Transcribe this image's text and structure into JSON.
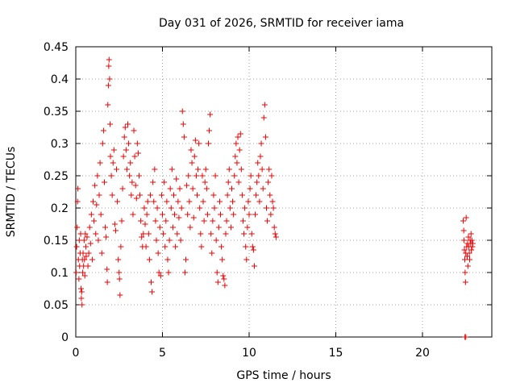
{
  "chart_data": {
    "type": "scatter",
    "title": "Day 031 of 2026, SRMTID for receiver iama",
    "xlabel": "GPS time / hours",
    "ylabel": "SRMTID / TECUs",
    "xlim": [
      0,
      24
    ],
    "ylim": [
      0,
      0.45
    ],
    "xticks": [
      "0",
      "5",
      "10",
      "15",
      "20"
    ],
    "yticks": [
      "0",
      "0.05",
      "0.1",
      "0.15",
      "0.2",
      "0.25",
      "0.3",
      "0.35",
      "0.4",
      "0.45"
    ],
    "grid": true,
    "marker": "+",
    "color": "#ee0000",
    "series": [
      {
        "name": "SRMTID",
        "points": [
          [
            0.02,
            0.1
          ],
          [
            0.05,
            0.14
          ],
          [
            0.08,
            0.17
          ],
          [
            0.1,
            0.21
          ],
          [
            0.12,
            0.23
          ],
          [
            0.15,
            0.12
          ],
          [
            0.18,
            0.09
          ],
          [
            0.2,
            0.15
          ],
          [
            0.22,
            0.11
          ],
          [
            0.25,
            0.13
          ],
          [
            0.28,
            0.16
          ],
          [
            0.3,
            0.075
          ],
          [
            0.32,
            0.06
          ],
          [
            0.34,
            0.07
          ],
          [
            0.36,
            0.05
          ],
          [
            0.38,
            0.12
          ],
          [
            0.4,
            0.1
          ],
          [
            0.42,
            0.13
          ],
          [
            0.45,
            0.11
          ],
          [
            0.48,
            0.15
          ],
          [
            0.5,
            0.12
          ],
          [
            0.52,
            0.095
          ],
          [
            0.55,
            0.16
          ],
          [
            0.58,
            0.14
          ],
          [
            0.6,
            0.125
          ],
          [
            0.65,
            0.155
          ],
          [
            0.7,
            0.11
          ],
          [
            0.75,
            0.13
          ],
          [
            0.8,
            0.17
          ],
          [
            0.85,
            0.145
          ],
          [
            0.9,
            0.19
          ],
          [
            0.95,
            0.12
          ],
          [
            1.0,
            0.21
          ],
          [
            1.05,
            0.18
          ],
          [
            1.1,
            0.235
          ],
          [
            1.15,
            0.16
          ],
          [
            1.2,
            0.205
          ],
          [
            1.25,
            0.25
          ],
          [
            1.3,
            0.15
          ],
          [
            1.35,
            0.22
          ],
          [
            1.4,
            0.27
          ],
          [
            1.45,
            0.19
          ],
          [
            1.5,
            0.13
          ],
          [
            1.55,
            0.3
          ],
          [
            1.6,
            0.32
          ],
          [
            1.65,
            0.24
          ],
          [
            1.7,
            0.17
          ],
          [
            1.75,
            0.155
          ],
          [
            1.8,
            0.105
          ],
          [
            1.82,
            0.085
          ],
          [
            1.85,
            0.36
          ],
          [
            1.88,
            0.39
          ],
          [
            1.9,
            0.42
          ],
          [
            1.92,
            0.43
          ],
          [
            1.95,
            0.4
          ],
          [
            1.98,
            0.33
          ],
          [
            2.0,
            0.28
          ],
          [
            2.05,
            0.25
          ],
          [
            2.1,
            0.22
          ],
          [
            2.15,
            0.27
          ],
          [
            2.2,
            0.29
          ],
          [
            2.25,
            0.175
          ],
          [
            2.3,
            0.165
          ],
          [
            2.35,
            0.26
          ],
          [
            2.4,
            0.21
          ],
          [
            2.45,
            0.12
          ],
          [
            2.5,
            0.1
          ],
          [
            2.52,
            0.09
          ],
          [
            2.55,
            0.065
          ],
          [
            2.6,
            0.14
          ],
          [
            2.65,
            0.18
          ],
          [
            2.7,
            0.23
          ],
          [
            2.75,
            0.28
          ],
          [
            2.8,
            0.31
          ],
          [
            2.85,
            0.325
          ],
          [
            2.9,
            0.29
          ],
          [
            2.95,
            0.26
          ],
          [
            3.0,
            0.33
          ],
          [
            3.05,
            0.3
          ],
          [
            3.1,
            0.25
          ],
          [
            3.15,
            0.27
          ],
          [
            3.2,
            0.22
          ],
          [
            3.25,
            0.24
          ],
          [
            3.3,
            0.19
          ],
          [
            3.35,
            0.32
          ],
          [
            3.4,
            0.28
          ],
          [
            3.45,
            0.235
          ],
          [
            3.5,
            0.215
          ],
          [
            3.55,
            0.3
          ],
          [
            3.6,
            0.285
          ],
          [
            3.65,
            0.25
          ],
          [
            3.7,
            0.22
          ],
          [
            3.75,
            0.18
          ],
          [
            3.8,
            0.155
          ],
          [
            3.85,
            0.14
          ],
          [
            3.9,
            0.16
          ],
          [
            3.95,
            0.2
          ],
          [
            4.0,
            0.175
          ],
          [
            4.05,
            0.14
          ],
          [
            4.1,
            0.19
          ],
          [
            4.15,
            0.21
          ],
          [
            4.2,
            0.16
          ],
          [
            4.25,
            0.12
          ],
          [
            4.3,
            0.22
          ],
          [
            4.35,
            0.085
          ],
          [
            4.4,
            0.07
          ],
          [
            4.45,
            0.24
          ],
          [
            4.5,
            0.21
          ],
          [
            4.55,
            0.26
          ],
          [
            4.6,
            0.18
          ],
          [
            4.65,
            0.15
          ],
          [
            4.7,
            0.2
          ],
          [
            4.75,
            0.13
          ],
          [
            4.8,
            0.1
          ],
          [
            4.85,
            0.17
          ],
          [
            4.9,
            0.095
          ],
          [
            4.95,
            0.22
          ],
          [
            5.0,
            0.19
          ],
          [
            5.05,
            0.16
          ],
          [
            5.1,
            0.24
          ],
          [
            5.15,
            0.14
          ],
          [
            5.2,
            0.18
          ],
          [
            5.25,
            0.21
          ],
          [
            5.3,
            0.12
          ],
          [
            5.35,
            0.1
          ],
          [
            5.4,
            0.15
          ],
          [
            5.45,
            0.23
          ],
          [
            5.5,
            0.2
          ],
          [
            5.55,
            0.26
          ],
          [
            5.6,
            0.17
          ],
          [
            5.65,
            0.22
          ],
          [
            5.7,
            0.19
          ],
          [
            5.75,
            0.14
          ],
          [
            5.8,
            0.245
          ],
          [
            5.85,
            0.16
          ],
          [
            5.9,
            0.21
          ],
          [
            5.95,
            0.185
          ],
          [
            6.0,
            0.23
          ],
          [
            6.05,
            0.15
          ],
          [
            6.1,
            0.2
          ],
          [
            6.15,
            0.35
          ],
          [
            6.2,
            0.33
          ],
          [
            6.25,
            0.31
          ],
          [
            6.3,
            0.1
          ],
          [
            6.35,
            0.12
          ],
          [
            6.4,
            0.235
          ],
          [
            6.45,
            0.19
          ],
          [
            6.5,
            0.25
          ],
          [
            6.55,
            0.21
          ],
          [
            6.6,
            0.17
          ],
          [
            6.65,
            0.29
          ],
          [
            6.7,
            0.27
          ],
          [
            6.75,
            0.23
          ],
          [
            6.8,
            0.185
          ],
          [
            6.85,
            0.28
          ],
          [
            6.9,
            0.305
          ],
          [
            6.95,
            0.25
          ],
          [
            7.0,
            0.22
          ],
          [
            7.05,
            0.26
          ],
          [
            7.1,
            0.3
          ],
          [
            7.15,
            0.2
          ],
          [
            7.2,
            0.16
          ],
          [
            7.25,
            0.14
          ],
          [
            7.3,
            0.25
          ],
          [
            7.35,
            0.21
          ],
          [
            7.4,
            0.18
          ],
          [
            7.45,
            0.24
          ],
          [
            7.5,
            0.26
          ],
          [
            7.55,
            0.23
          ],
          [
            7.6,
            0.19
          ],
          [
            7.65,
            0.3
          ],
          [
            7.7,
            0.32
          ],
          [
            7.75,
            0.345
          ],
          [
            7.8,
            0.16
          ],
          [
            7.85,
            0.13
          ],
          [
            7.9,
            0.18
          ],
          [
            7.95,
            0.22
          ],
          [
            8.0,
            0.2
          ],
          [
            8.05,
            0.25
          ],
          [
            8.1,
            0.15
          ],
          [
            8.15,
            0.1
          ],
          [
            8.2,
            0.085
          ],
          [
            8.25,
            0.17
          ],
          [
            8.3,
            0.21
          ],
          [
            8.35,
            0.19
          ],
          [
            8.4,
            0.14
          ],
          [
            8.45,
            0.12
          ],
          [
            8.5,
            0.095
          ],
          [
            8.55,
            0.09
          ],
          [
            8.6,
            0.08
          ],
          [
            8.65,
            0.16
          ],
          [
            8.7,
            0.18
          ],
          [
            8.75,
            0.22
          ],
          [
            8.8,
            0.24
          ],
          [
            8.85,
            0.26
          ],
          [
            8.9,
            0.2
          ],
          [
            8.95,
            0.17
          ],
          [
            9.0,
            0.23
          ],
          [
            9.05,
            0.21
          ],
          [
            9.1,
            0.19
          ],
          [
            9.15,
            0.25
          ],
          [
            9.2,
            0.28
          ],
          [
            9.25,
            0.3
          ],
          [
            9.3,
            0.27
          ],
          [
            9.35,
            0.31
          ],
          [
            9.4,
            0.24
          ],
          [
            9.45,
            0.29
          ],
          [
            9.5,
            0.315
          ],
          [
            9.55,
            0.26
          ],
          [
            9.6,
            0.22
          ],
          [
            9.65,
            0.18
          ],
          [
            9.7,
            0.16
          ],
          [
            9.75,
            0.2
          ],
          [
            9.8,
            0.14
          ],
          [
            9.85,
            0.12
          ],
          [
            9.9,
            0.17
          ],
          [
            9.95,
            0.21
          ],
          [
            10.0,
            0.19
          ],
          [
            10.05,
            0.23
          ],
          [
            10.1,
            0.25
          ],
          [
            10.15,
            0.16
          ],
          [
            10.2,
            0.14
          ],
          [
            10.25,
            0.135
          ],
          [
            10.3,
            0.11
          ],
          [
            10.35,
            0.19
          ],
          [
            10.4,
            0.22
          ],
          [
            10.45,
            0.24
          ],
          [
            10.5,
            0.27
          ],
          [
            10.55,
            0.25
          ],
          [
            10.6,
            0.21
          ],
          [
            10.65,
            0.28
          ],
          [
            10.7,
            0.3
          ],
          [
            10.75,
            0.26
          ],
          [
            10.8,
            0.23
          ],
          [
            10.85,
            0.34
          ],
          [
            10.9,
            0.36
          ],
          [
            10.95,
            0.31
          ],
          [
            11.0,
            0.2
          ],
          [
            11.05,
            0.18
          ],
          [
            11.1,
            0.24
          ],
          [
            11.15,
            0.26
          ],
          [
            11.2,
            0.22
          ],
          [
            11.25,
            0.19
          ],
          [
            11.3,
            0.25
          ],
          [
            11.35,
            0.21
          ],
          [
            11.4,
            0.2
          ],
          [
            11.45,
            0.17
          ],
          [
            11.5,
            0.16
          ],
          [
            11.55,
            0.155
          ],
          [
            22.35,
            0.18
          ],
          [
            22.38,
            0.165
          ],
          [
            22.4,
            0.15
          ],
          [
            22.42,
            0.135
          ],
          [
            22.44,
            0.12
          ],
          [
            22.46,
            0.1
          ],
          [
            22.48,
            0.085
          ],
          [
            22.5,
            0.13
          ],
          [
            22.52,
            0.185
          ],
          [
            22.55,
            0.14
          ],
          [
            22.58,
            0.125
          ],
          [
            22.6,
            0.145
          ],
          [
            22.62,
            0.11
          ],
          [
            22.65,
            0.155
          ],
          [
            22.68,
            0.14
          ],
          [
            22.7,
            0.13
          ],
          [
            22.72,
            0.12
          ],
          [
            22.75,
            0.15
          ],
          [
            22.78,
            0.145
          ],
          [
            22.8,
            0.16
          ],
          [
            22.82,
            0.135
          ],
          [
            22.85,
            0.15
          ],
          [
            22.88,
            0.14
          ],
          [
            22.9,
            0.145
          ],
          [
            22.45,
            0.0
          ],
          [
            22.5,
            0.0
          ]
        ]
      }
    ]
  }
}
